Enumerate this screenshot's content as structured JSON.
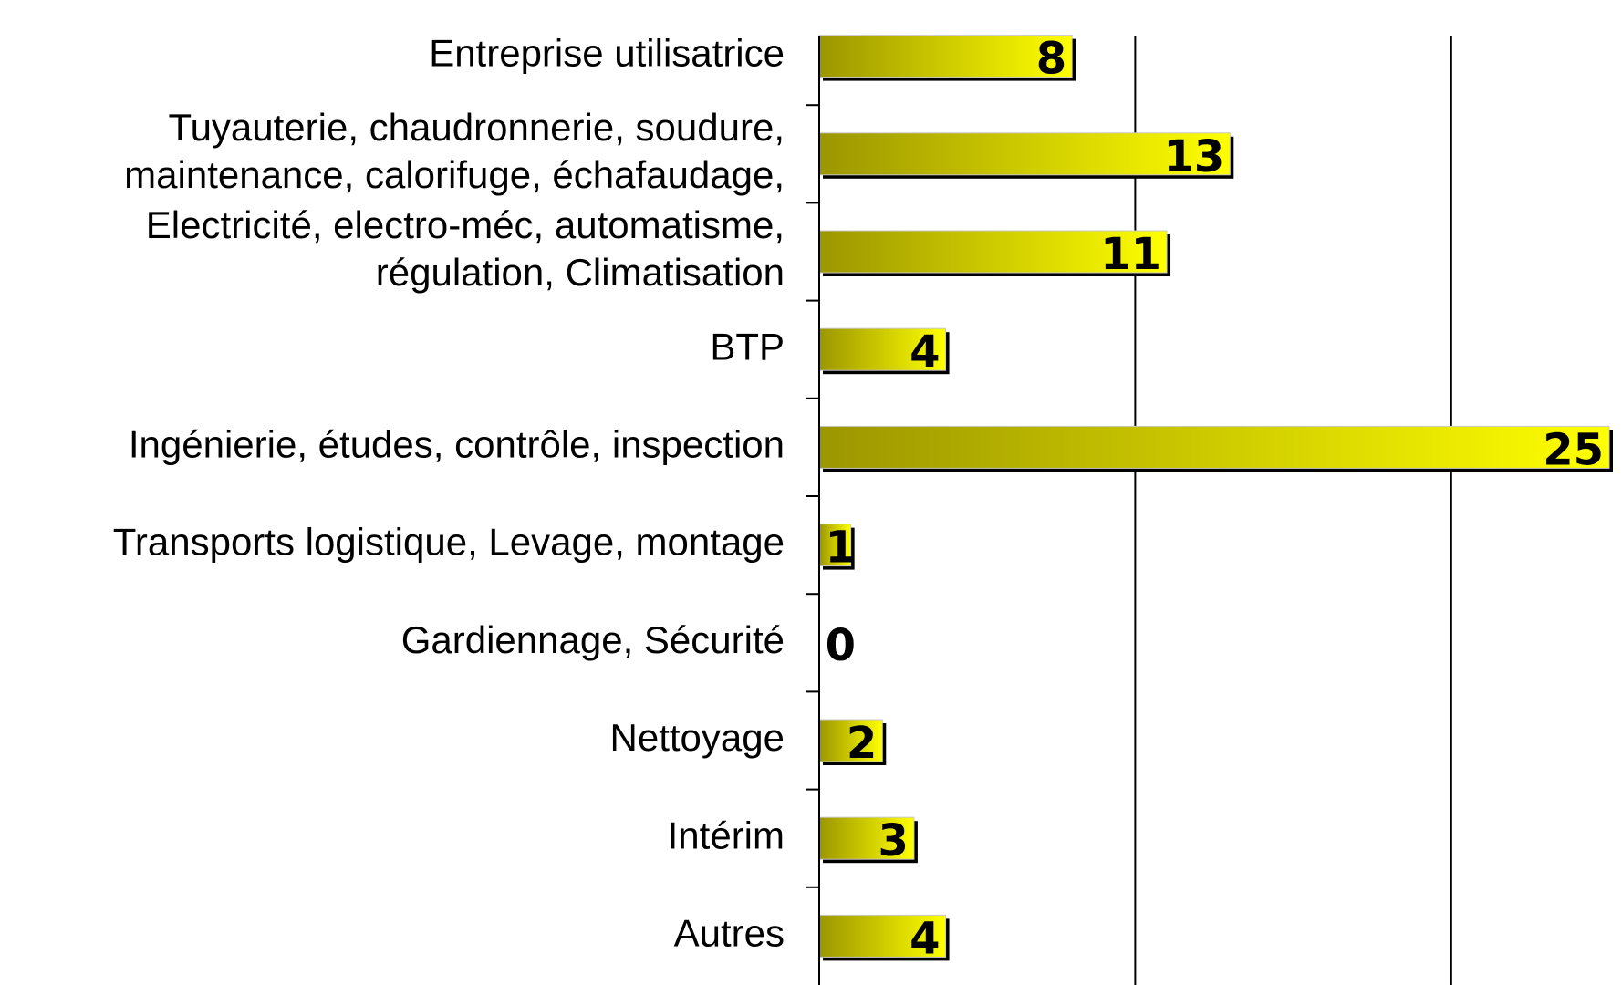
{
  "chart_data": {
    "type": "barh",
    "categories": [
      "Entreprise utilisatrice",
      "Tuyauterie, chaudronnerie, soudure,\nmaintenance, calorifuge, échafaudage,",
      "Electricité, electro-méc, automatisme,\nrégulation, Climatisation",
      "BTP",
      "Ingénierie, études, contrôle, inspection",
      "Transports logistique, Levage, montage",
      "Gardiennage, Sécurité",
      "Nettoyage",
      "Intérim",
      "Autres"
    ],
    "values": [
      8,
      13,
      11,
      4,
      25,
      1,
      0,
      2,
      3,
      4
    ],
    "colors": [
      "#9c9600",
      "#ffff00"
    ],
    "xlim": [
      0,
      25
    ],
    "xticks": [
      0,
      10,
      20
    ],
    "grid": true
  }
}
